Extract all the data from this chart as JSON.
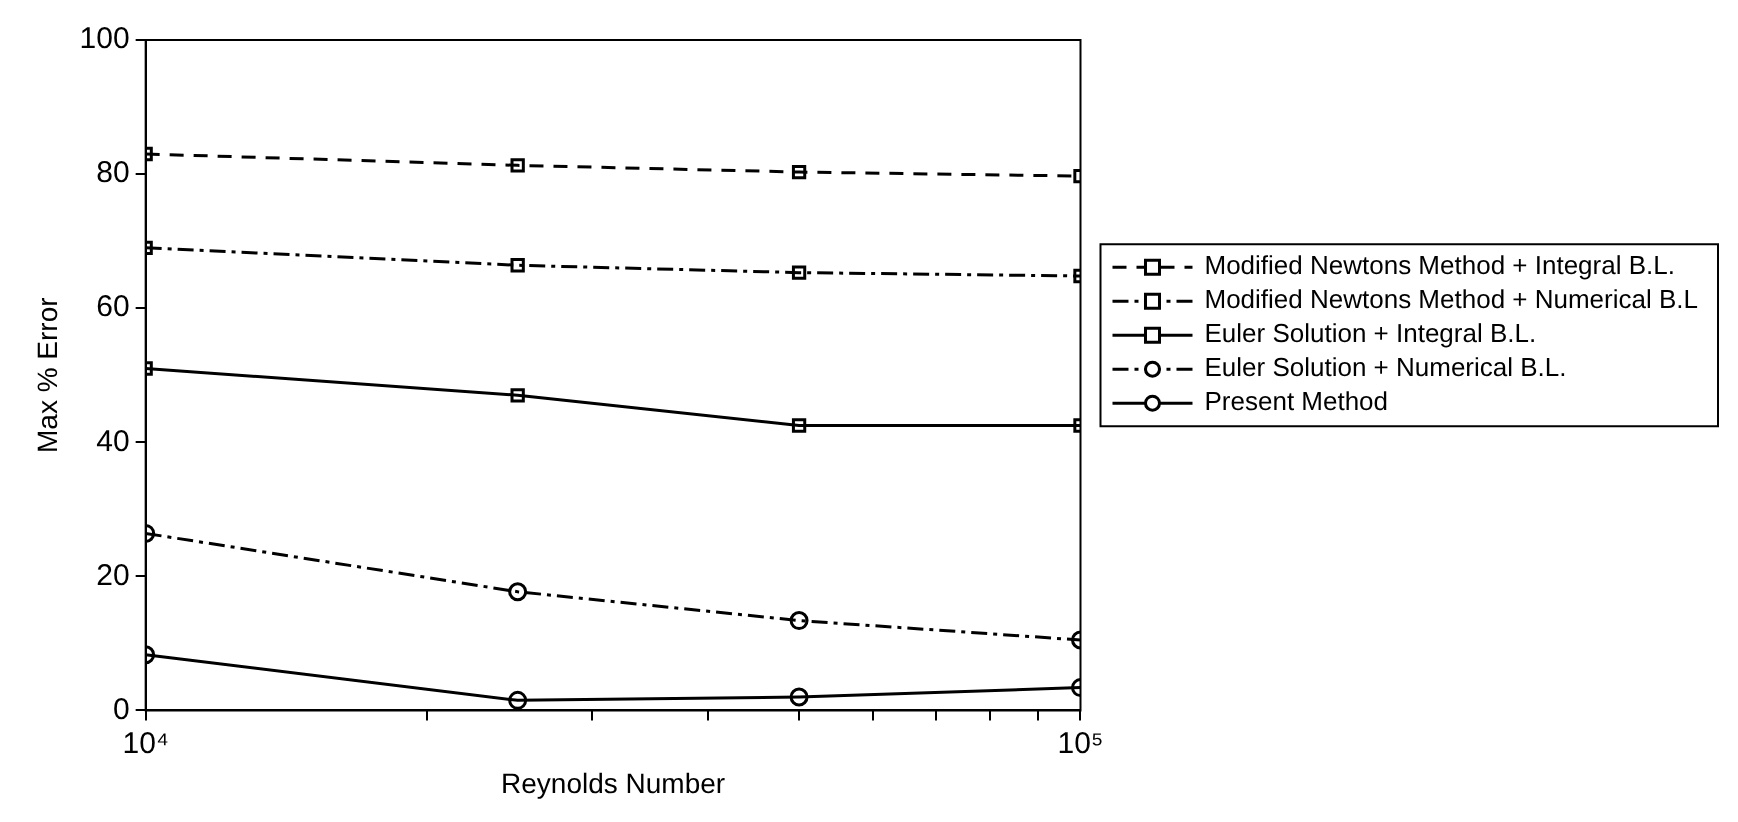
{
  "chart_data": {
    "type": "line",
    "xlabel": "Reynolds Number",
    "ylabel": "Max % Error",
    "x": [
      10000,
      25000,
      50000,
      100000
    ],
    "log": "x",
    "xlim": [
      10000,
      100000
    ],
    "xticks": [
      {
        "value": 10000,
        "label": "10⁴"
      },
      {
        "value": 20000,
        "label": null
      },
      {
        "value": 30000,
        "label": null
      },
      {
        "value": 40000,
        "label": null
      },
      {
        "value": 50000,
        "label": null
      },
      {
        "value": 60000,
        "label": null
      },
      {
        "value": 70000,
        "label": null
      },
      {
        "value": 80000,
        "label": null
      },
      {
        "value": 90000,
        "label": null
      },
      {
        "value": 100000,
        "label": "10⁵"
      }
    ],
    "ylim": [
      0,
      100
    ],
    "yticks": [
      0,
      20,
      40,
      60,
      80,
      100
    ],
    "grid": false,
    "legend": "right",
    "series": [
      {
        "name": "Modified Newtons Method + Integral B.L.",
        "color": "#000000",
        "line_style": "dashed",
        "marker": "square",
        "values": [
          83,
          81.3,
          80.3,
          79.7
        ]
      },
      {
        "name": "Modified Newtons Method + Numerical B.L",
        "color": "#000000",
        "line_style": "dashdot",
        "marker": "square",
        "values": [
          69,
          66.4,
          65.3,
          64.8
        ]
      },
      {
        "name": "Euler Solution + Integral B.L.",
        "color": "#000000",
        "line_style": "solid",
        "marker": "square",
        "values": [
          51,
          47,
          42.5,
          42.5
        ]
      },
      {
        "name": "Euler Solution + Numerical B.L.",
        "color": "#000000",
        "line_style": "dashdot",
        "marker": "circle",
        "values": [
          26.4,
          17.7,
          13.4,
          10.5
        ]
      },
      {
        "name": "Present Method",
        "color": "#000000",
        "line_style": "solid",
        "marker": "circle",
        "values": [
          8.3,
          1.5,
          2,
          3.4
        ]
      }
    ]
  }
}
